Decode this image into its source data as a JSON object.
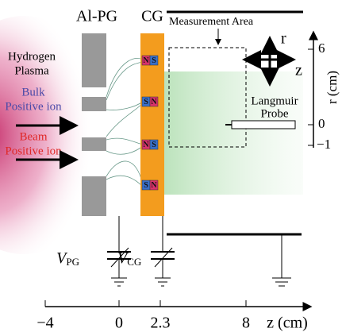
{
  "labels": {
    "pg": "Al-PG",
    "cg": "CG",
    "measurement": "Measurement Area",
    "plasma": [
      "Hydrogen",
      "Plasma"
    ],
    "bulk": [
      "Bulk",
      "Positive ion"
    ],
    "beam": [
      "Beam",
      "Positive ion"
    ],
    "r_arrow": "r",
    "z_arrow": "z",
    "probe": [
      "Langmuir",
      "Probe"
    ]
  },
  "magnets": [
    {
      "left": "N",
      "right": "S"
    },
    {
      "left": "S",
      "right": "N"
    },
    {
      "left": "N",
      "right": "S"
    },
    {
      "left": "S",
      "right": "N"
    }
  ],
  "r_axis": {
    "label": "r (cm)",
    "ticks": [
      "6",
      "0",
      "−1"
    ]
  },
  "z_axis": {
    "label": "z (cm)",
    "ticks": [
      "−4",
      "0",
      "2.3",
      "8"
    ]
  },
  "voltages": [
    {
      "symbol": "V",
      "subscript": "PG"
    },
    {
      "symbol": "V",
      "subscript": "CG"
    }
  ]
}
